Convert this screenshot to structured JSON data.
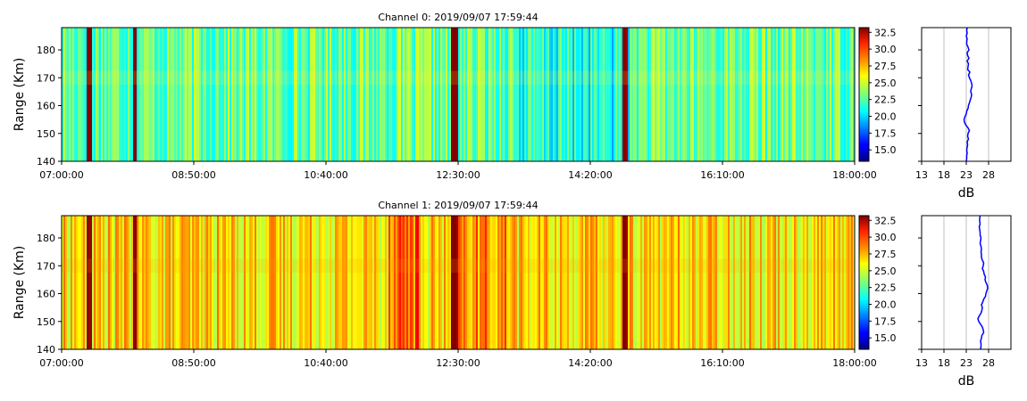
{
  "chart_data": [
    {
      "type": "heatmap",
      "title": "Channel 0: 2019/09/07 17:59:44",
      "ylabel": "Range (Km)",
      "ylim": [
        140,
        188
      ],
      "yticks": [
        140,
        150,
        160,
        170,
        180
      ],
      "xticks": [
        "07:00:00",
        "08:50:00",
        "10:40:00",
        "12:30:00",
        "14:20:00",
        "16:10:00",
        "18:00:00"
      ],
      "xlim": [
        "07:00:00",
        "18:00:00"
      ],
      "colorbar": {
        "range": [
          13.3,
          33.2
        ],
        "ticks": [
          "15.0",
          "17.5",
          "20.0",
          "22.5",
          "25.0",
          "27.5",
          "30.0",
          "32.5"
        ],
        "colormap": "jet"
      },
      "profile": {
        "xlabel": "dB",
        "xlim": [
          13,
          33
        ],
        "xticks": [
          "13",
          "18",
          "23",
          "28"
        ],
        "grid": true,
        "color": "#0000ff",
        "range": [
          140,
          141,
          142,
          143,
          144,
          145,
          146,
          147,
          148,
          149,
          150,
          151,
          152,
          153,
          154,
          155,
          156,
          157,
          158,
          159,
          160,
          161,
          162,
          163,
          164,
          165,
          166,
          167,
          168,
          169,
          170,
          171,
          172,
          173,
          174,
          175,
          176,
          177,
          178,
          179,
          180,
          181,
          182,
          183,
          184,
          185,
          186,
          187,
          188
        ],
        "db": [
          23.0,
          23.1,
          23.1,
          23.2,
          23.1,
          23.2,
          23.3,
          23.2,
          23.5,
          23.3,
          23.4,
          23.7,
          23.4,
          22.9,
          22.6,
          22.5,
          22.7,
          23.0,
          23.1,
          23.4,
          23.5,
          23.7,
          23.9,
          24.1,
          24.2,
          24.0,
          24.1,
          24.3,
          24.2,
          24.0,
          23.7,
          23.5,
          23.8,
          23.3,
          23.4,
          23.5,
          23.2,
          23.6,
          23.3,
          23.2,
          23.6,
          23.4,
          23.1,
          23.1,
          23.2,
          23.0,
          23.2,
          23.1,
          23.2
        ]
      }
    },
    {
      "type": "heatmap",
      "title": "Channel 1: 2019/09/07 17:59:44",
      "ylabel": "Range (Km)",
      "ylim": [
        140,
        188
      ],
      "yticks": [
        140,
        150,
        160,
        170,
        180
      ],
      "xticks": [
        "07:00:00",
        "08:50:00",
        "10:40:00",
        "12:30:00",
        "14:20:00",
        "16:10:00",
        "18:00:00"
      ],
      "xlim": [
        "07:00:00",
        "18:00:00"
      ],
      "colorbar": {
        "range": [
          13.3,
          33.2
        ],
        "ticks": [
          "15.0",
          "17.5",
          "20.0",
          "22.5",
          "25.0",
          "27.5",
          "30.0",
          "32.5"
        ],
        "colormap": "jet"
      },
      "profile": {
        "xlabel": "dB",
        "xlim": [
          13,
          33
        ],
        "xticks": [
          "13",
          "18",
          "23",
          "28"
        ],
        "grid": true,
        "color": "#0000ff",
        "range": [
          140,
          141,
          142,
          143,
          144,
          145,
          146,
          147,
          148,
          149,
          150,
          151,
          152,
          153,
          154,
          155,
          156,
          157,
          158,
          159,
          160,
          161,
          162,
          163,
          164,
          165,
          166,
          167,
          168,
          169,
          170,
          171,
          172,
          173,
          174,
          175,
          176,
          177,
          178,
          179,
          180,
          181,
          182,
          183,
          184,
          185,
          186,
          187,
          188
        ],
        "db": [
          26.2,
          26.3,
          26.3,
          26.2,
          26.4,
          26.5,
          26.9,
          26.8,
          26.6,
          26.2,
          25.8,
          25.6,
          25.9,
          26.3,
          26.5,
          26.6,
          26.4,
          26.7,
          26.9,
          27.3,
          27.4,
          27.6,
          27.8,
          27.7,
          27.4,
          27.2,
          27.3,
          27.0,
          26.9,
          26.6,
          26.8,
          26.9,
          26.6,
          26.4,
          26.4,
          26.3,
          26.4,
          26.3,
          26.1,
          26.2,
          26.3,
          26.1,
          26.1,
          26.0,
          25.9,
          26.1,
          26.0,
          26.0,
          26.1
        ]
      }
    }
  ]
}
